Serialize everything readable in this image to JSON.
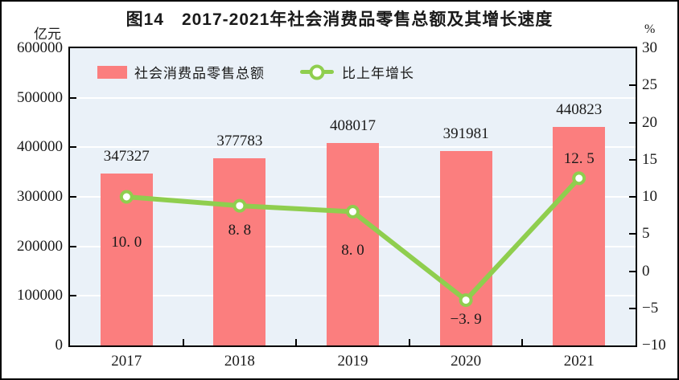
{
  "title": "图14　2017-2021年社会消费品零售总额及其增长速度",
  "axes": {
    "left_unit": "亿元",
    "right_unit": "%"
  },
  "legend": {
    "bar_label": "社会消费品零售总额",
    "line_label": "比上年增长"
  },
  "chart_data": {
    "type": "bar",
    "title": "图14　2017-2021年社会消费品零售总额及其增长速度",
    "categories": [
      "2017",
      "2018",
      "2019",
      "2020",
      "2021"
    ],
    "series": [
      {
        "name": "社会消费品零售总额",
        "type": "bar",
        "axis": "left",
        "values": [
          347327,
          377783,
          408017,
          391981,
          440823
        ],
        "value_labels": [
          "347327",
          "377783",
          "408017",
          "391981",
          "440823"
        ],
        "color": "#FB7E7E"
      },
      {
        "name": "比上年增长",
        "type": "line",
        "axis": "right",
        "values": [
          10.0,
          8.8,
          8.0,
          -3.9,
          12.5
        ],
        "value_labels": [
          "10. 0",
          "8. 8",
          "8. 0",
          "−3. 9",
          "12. 5"
        ],
        "color": "#8FCE4E",
        "marker": "circle-white-fill"
      }
    ],
    "left_axis": {
      "label": "亿元",
      "min": 0,
      "max": 600000,
      "ticks": [
        600000,
        500000,
        400000,
        300000,
        200000,
        100000,
        0
      ],
      "tick_labels": [
        "600000",
        "500000",
        "400000",
        "300000",
        "200000",
        "100000",
        "0"
      ]
    },
    "right_axis": {
      "label": "%",
      "min": -10,
      "max": 30,
      "ticks": [
        30,
        25,
        20,
        15,
        10,
        5,
        0,
        -5,
        -10
      ],
      "tick_labels": [
        "30",
        "25",
        "20",
        "15",
        "10",
        "5",
        "0",
        "−5",
        "−10"
      ]
    },
    "grid": {
      "horizontal": true,
      "color": "#FFFFFF"
    },
    "plot_bg": "#EAF1F8",
    "legend_position": "top-left-inside",
    "growth_label_dy": [
      57,
      31,
      48,
      24,
      -24
    ]
  }
}
